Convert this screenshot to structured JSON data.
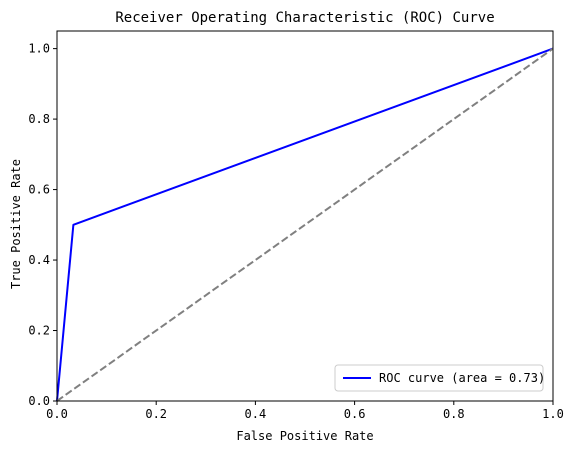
{
  "chart_data": {
    "type": "line",
    "title": "Receiver Operating Characteristic (ROC) Curve",
    "xlabel": "False Positive Rate",
    "ylabel": "True Positive Rate",
    "xlim": [
      0.0,
      1.0
    ],
    "ylim": [
      0.0,
      1.05
    ],
    "x_ticks": [
      0.0,
      0.2,
      0.4,
      0.6,
      0.8,
      1.0
    ],
    "y_ticks": [
      0.0,
      0.2,
      0.4,
      0.6,
      0.8,
      1.0
    ],
    "x_tick_labels": [
      "0.0",
      "0.2",
      "0.4",
      "0.6",
      "0.8",
      "1.0"
    ],
    "y_tick_labels": [
      "0.0",
      "0.2",
      "0.4",
      "0.6",
      "0.8",
      "1.0"
    ],
    "grid": false,
    "legend_position": "lower-right",
    "series": [
      {
        "name": "ROC curve (area = 0.73)",
        "color": "#0000ff",
        "style": "solid",
        "x": [
          0.0,
          0.033,
          1.0
        ],
        "y": [
          0.0,
          0.5,
          1.0
        ]
      },
      {
        "color": "#808080",
        "style": "dashed",
        "x": [
          0.0,
          1.0
        ],
        "y": [
          0.0,
          1.0
        ]
      }
    ]
  }
}
